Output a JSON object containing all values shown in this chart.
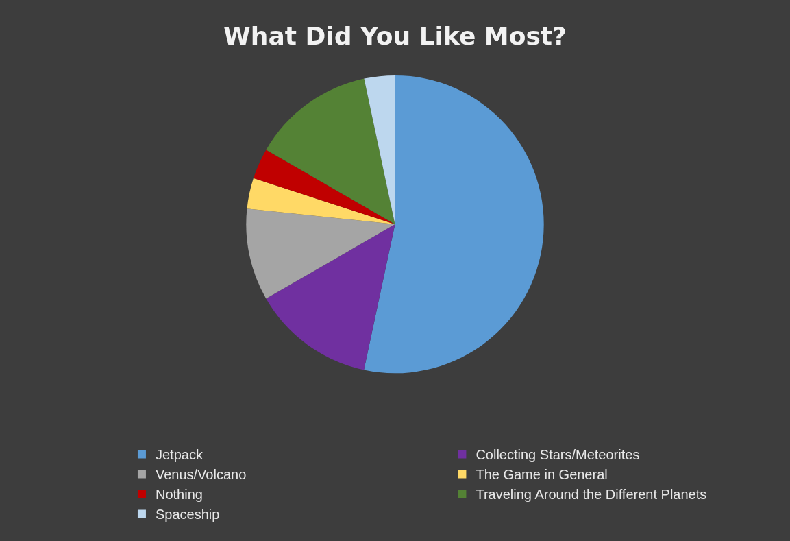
{
  "chart_data": {
    "type": "pie",
    "title": "What Did You Like Most?",
    "categories": [
      "Jetpack",
      "Collecting Stars/Meteorites",
      "Venus/Volcano",
      "The Game in General",
      "Nothing",
      "Traveling Around the Different Planets",
      "Spaceship"
    ],
    "values": [
      53.35,
      13.33,
      10,
      3.33,
      3.33,
      13.33,
      3.33
    ],
    "colors": [
      "#5b9bd5",
      "#7030a0",
      "#a5a5a5",
      "#ffd966",
      "#c00000",
      "#548235",
      "#bdd7ee"
    ],
    "legend": "bottom"
  }
}
